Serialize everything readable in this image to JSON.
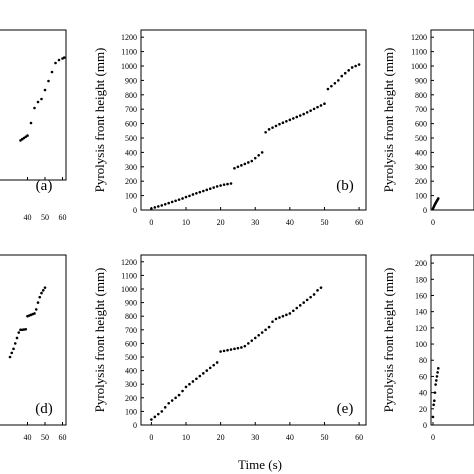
{
  "chart_data": [
    {
      "type": "scatter",
      "panel_label": "(a)",
      "xlabel": "",
      "ylabel": "",
      "xticks": [
        "40",
        "50",
        "60"
      ],
      "yticks": [],
      "x_visible": [
        36,
        63
      ],
      "y_visible": [
        600,
        1100
      ],
      "series": [
        {
          "x": [
            36,
            37,
            38,
            39,
            40,
            42,
            44,
            46,
            48,
            50,
            52,
            54,
            56,
            58,
            60,
            61
          ],
          "y": [
            732,
            736,
            740,
            744,
            748,
            790,
            840,
            860,
            870,
            900,
            930,
            960,
            990,
            1000,
            1005,
            1008
          ]
        }
      ]
    },
    {
      "type": "scatter",
      "panel_label": "(b)",
      "xlabel": "",
      "ylabel": "Pyrolysis front height (mm)",
      "xlim": [
        -3,
        62
      ],
      "ylim": [
        0,
        1250
      ],
      "xticks": [
        "0",
        "10",
        "20",
        "30",
        "40",
        "50",
        "60"
      ],
      "yticks": [
        "0",
        "100",
        "200",
        "300",
        "400",
        "500",
        "600",
        "700",
        "800",
        "900",
        "1000",
        "1100",
        "1200"
      ],
      "series": [
        {
          "x": [
            0,
            1,
            2,
            3,
            4,
            5,
            6,
            7,
            8,
            9,
            10,
            11,
            12,
            13,
            14,
            15,
            16,
            17,
            18,
            19,
            20,
            21,
            22,
            23,
            24,
            25,
            26,
            27,
            28,
            29,
            30,
            31,
            32,
            33,
            34,
            35,
            36,
            37,
            38,
            39,
            40,
            41,
            42,
            43,
            44,
            45,
            46,
            47,
            48,
            49,
            50,
            51,
            52,
            53,
            54,
            55,
            56,
            57,
            58,
            59,
            60
          ],
          "y": [
            10,
            18,
            25,
            32,
            40,
            48,
            56,
            64,
            72,
            80,
            90,
            98,
            108,
            116,
            124,
            132,
            140,
            148,
            156,
            164,
            170,
            176,
            180,
            184,
            290,
            300,
            310,
            320,
            330,
            340,
            360,
            380,
            400,
            540,
            560,
            572,
            584,
            596,
            606,
            616,
            626,
            636,
            646,
            656,
            666,
            678,
            690,
            702,
            714,
            726,
            738,
            840,
            860,
            880,
            900,
            930,
            950,
            970,
            990,
            1000,
            1010
          ]
        }
      ]
    },
    {
      "type": "scatter",
      "panel_label": "",
      "xlabel": "",
      "ylabel": "Pyrolysis front height (mm)",
      "xlim": [
        -3,
        62
      ],
      "ylim": [
        0,
        1250
      ],
      "xticks": [
        "0"
      ],
      "yticks": [
        "0",
        "100",
        "200",
        "300",
        "400",
        "500",
        "600",
        "700",
        "800",
        "900",
        "1000",
        "1100",
        "1200"
      ],
      "series": [
        {
          "x": [
            0,
            1,
            2,
            3,
            4,
            5,
            6,
            7,
            8
          ],
          "y": [
            10,
            20,
            30,
            40,
            48,
            56,
            64,
            72,
            80
          ]
        }
      ]
    },
    {
      "type": "scatter",
      "panel_label": "(d)",
      "xlabel": "",
      "ylabel": "",
      "xticks": [
        "40",
        "50",
        "60"
      ],
      "yticks": [],
      "x_visible": [
        30,
        63
      ],
      "y_visible": [
        0,
        1250
      ],
      "series": [
        {
          "x": [
            30,
            31,
            32,
            33,
            34,
            35,
            36,
            37,
            38,
            39,
            40,
            41,
            42,
            43,
            44,
            45,
            46,
            47,
            48,
            49,
            50
          ],
          "y": [
            500,
            530,
            560,
            600,
            640,
            680,
            700,
            700,
            702,
            704,
            800,
            805,
            810,
            815,
            820,
            850,
            900,
            940,
            970,
            990,
            1010
          ]
        }
      ]
    },
    {
      "type": "scatter",
      "panel_label": "(e)",
      "xlabel": "Time (s)",
      "ylabel": "Pyrolysis front height (mm)",
      "xlim": [
        -3,
        62
      ],
      "ylim": [
        0,
        1250
      ],
      "xticks": [
        "0",
        "10",
        "20",
        "30",
        "40",
        "50",
        "60"
      ],
      "yticks": [
        "0",
        "100",
        "200",
        "300",
        "400",
        "500",
        "600",
        "700",
        "800",
        "900",
        "1000",
        "1100",
        "1200"
      ],
      "series": [
        {
          "x": [
            0,
            1,
            2,
            3,
            4,
            5,
            6,
            7,
            8,
            9,
            10,
            11,
            12,
            13,
            14,
            15,
            16,
            17,
            18,
            19,
            20,
            21,
            22,
            23,
            24,
            25,
            26,
            27,
            28,
            29,
            30,
            31,
            32,
            33,
            34,
            35,
            36,
            37,
            38,
            39,
            40,
            41,
            42,
            43,
            44,
            45,
            46,
            47,
            48,
            49
          ],
          "y": [
            40,
            60,
            80,
            100,
            130,
            160,
            180,
            200,
            220,
            250,
            280,
            300,
            320,
            340,
            360,
            380,
            400,
            420,
            440,
            460,
            540,
            545,
            550,
            555,
            560,
            565,
            570,
            580,
            600,
            620,
            640,
            660,
            680,
            700,
            720,
            760,
            780,
            790,
            800,
            810,
            820,
            840,
            860,
            880,
            900,
            920,
            940,
            960,
            990,
            1010
          ]
        }
      ]
    },
    {
      "type": "scatter",
      "panel_label": "",
      "xlabel": "",
      "ylabel": "Pyrolysis front height (mm)",
      "xlim": [
        -3,
        62
      ],
      "ylim": [
        0,
        210
      ],
      "xticks": [
        "0"
      ],
      "yticks": [
        "0",
        "20",
        "40",
        "60",
        "80",
        "100",
        "120",
        "140",
        "160",
        "180",
        "200"
      ],
      "series": [
        {
          "x": [
            0,
            1,
            2,
            3,
            4,
            5,
            6,
            7,
            8
          ],
          "y": [
            10,
            25,
            30,
            40,
            50,
            55,
            60,
            65,
            70
          ]
        }
      ]
    }
  ],
  "bottom_label": "Time (s)"
}
